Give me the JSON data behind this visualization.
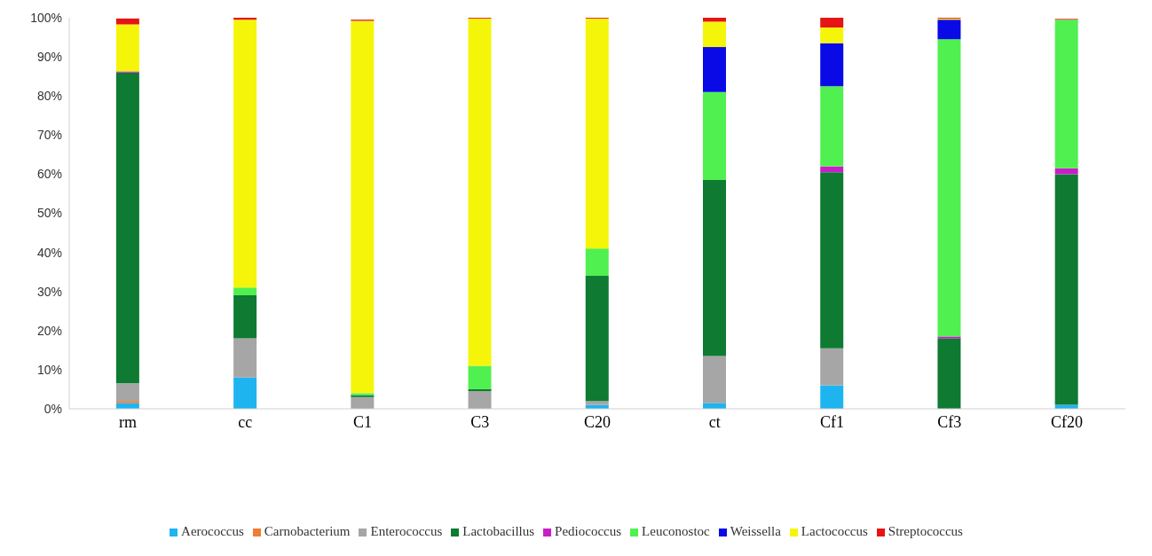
{
  "chart_data": {
    "type": "bar",
    "stacked": true,
    "categories": [
      "rm",
      "cc",
      "C1",
      "C3",
      "C20",
      "ct",
      "Cf1",
      "Cf3",
      "Cf20"
    ],
    "ylim": [
      0,
      100
    ],
    "yticks": [
      {
        "value": 0,
        "label": "0%"
      },
      {
        "value": 10,
        "label": "10%"
      },
      {
        "value": 20,
        "label": "20%"
      },
      {
        "value": 30,
        "label": "30%"
      },
      {
        "value": 40,
        "label": "40%"
      },
      {
        "value": 50,
        "label": "50%"
      },
      {
        "value": 60,
        "label": "60%"
      },
      {
        "value": 70,
        "label": "70%"
      },
      {
        "value": 80,
        "label": "80%"
      },
      {
        "value": 90,
        "label": "90%"
      },
      {
        "value": 100,
        "label": "100%"
      }
    ],
    "grid": false,
    "legend": "bottom",
    "series": [
      {
        "name": "Aerococcus",
        "color": "#1eb4f0",
        "values": [
          1.5,
          8,
          null,
          0,
          1,
          1.5,
          6,
          0,
          1
        ]
      },
      {
        "name": "Carnobacterium",
        "color": "#f07d32",
        "values": [
          0.5,
          0,
          0,
          0,
          0,
          0,
          0,
          0,
          0
        ]
      },
      {
        "name": "Enterococcus",
        "color": "#a6a6a6",
        "values": [
          4.5,
          10,
          3,
          4.5,
          1,
          12,
          9.5,
          0,
          null
        ]
      },
      {
        "name": "Lactobacillus",
        "color": "#0e7a32",
        "values": [
          79.5,
          11,
          0.5,
          0.5,
          32,
          45,
          45,
          18,
          59
        ]
      },
      {
        "name": "Pediococcus",
        "color": "#c81ec8",
        "values": [
          0.3,
          0,
          0,
          0,
          0,
          0,
          1.5,
          0.5,
          1.5
        ]
      },
      {
        "name": "Leuconostoc",
        "color": "#50f050",
        "values": [
          null,
          2,
          0.5,
          6,
          7,
          22.5,
          20.5,
          76,
          38
        ]
      },
      {
        "name": "Weissella",
        "color": "#0a0ae6",
        "values": [
          0,
          0,
          0,
          0,
          0,
          11.5,
          11,
          5,
          0
        ]
      },
      {
        "name": "Lactococcus",
        "color": "#f5f50a",
        "values": [
          12,
          68.5,
          95.2,
          88.8,
          58.8,
          6.5,
          4,
          0.3,
          0
        ]
      },
      {
        "name": "Streptococcus",
        "color": "#e61414",
        "values": [
          1.5,
          0.5,
          0.3,
          0.2,
          0.2,
          1,
          2.5,
          0.2,
          0.2
        ]
      }
    ]
  }
}
